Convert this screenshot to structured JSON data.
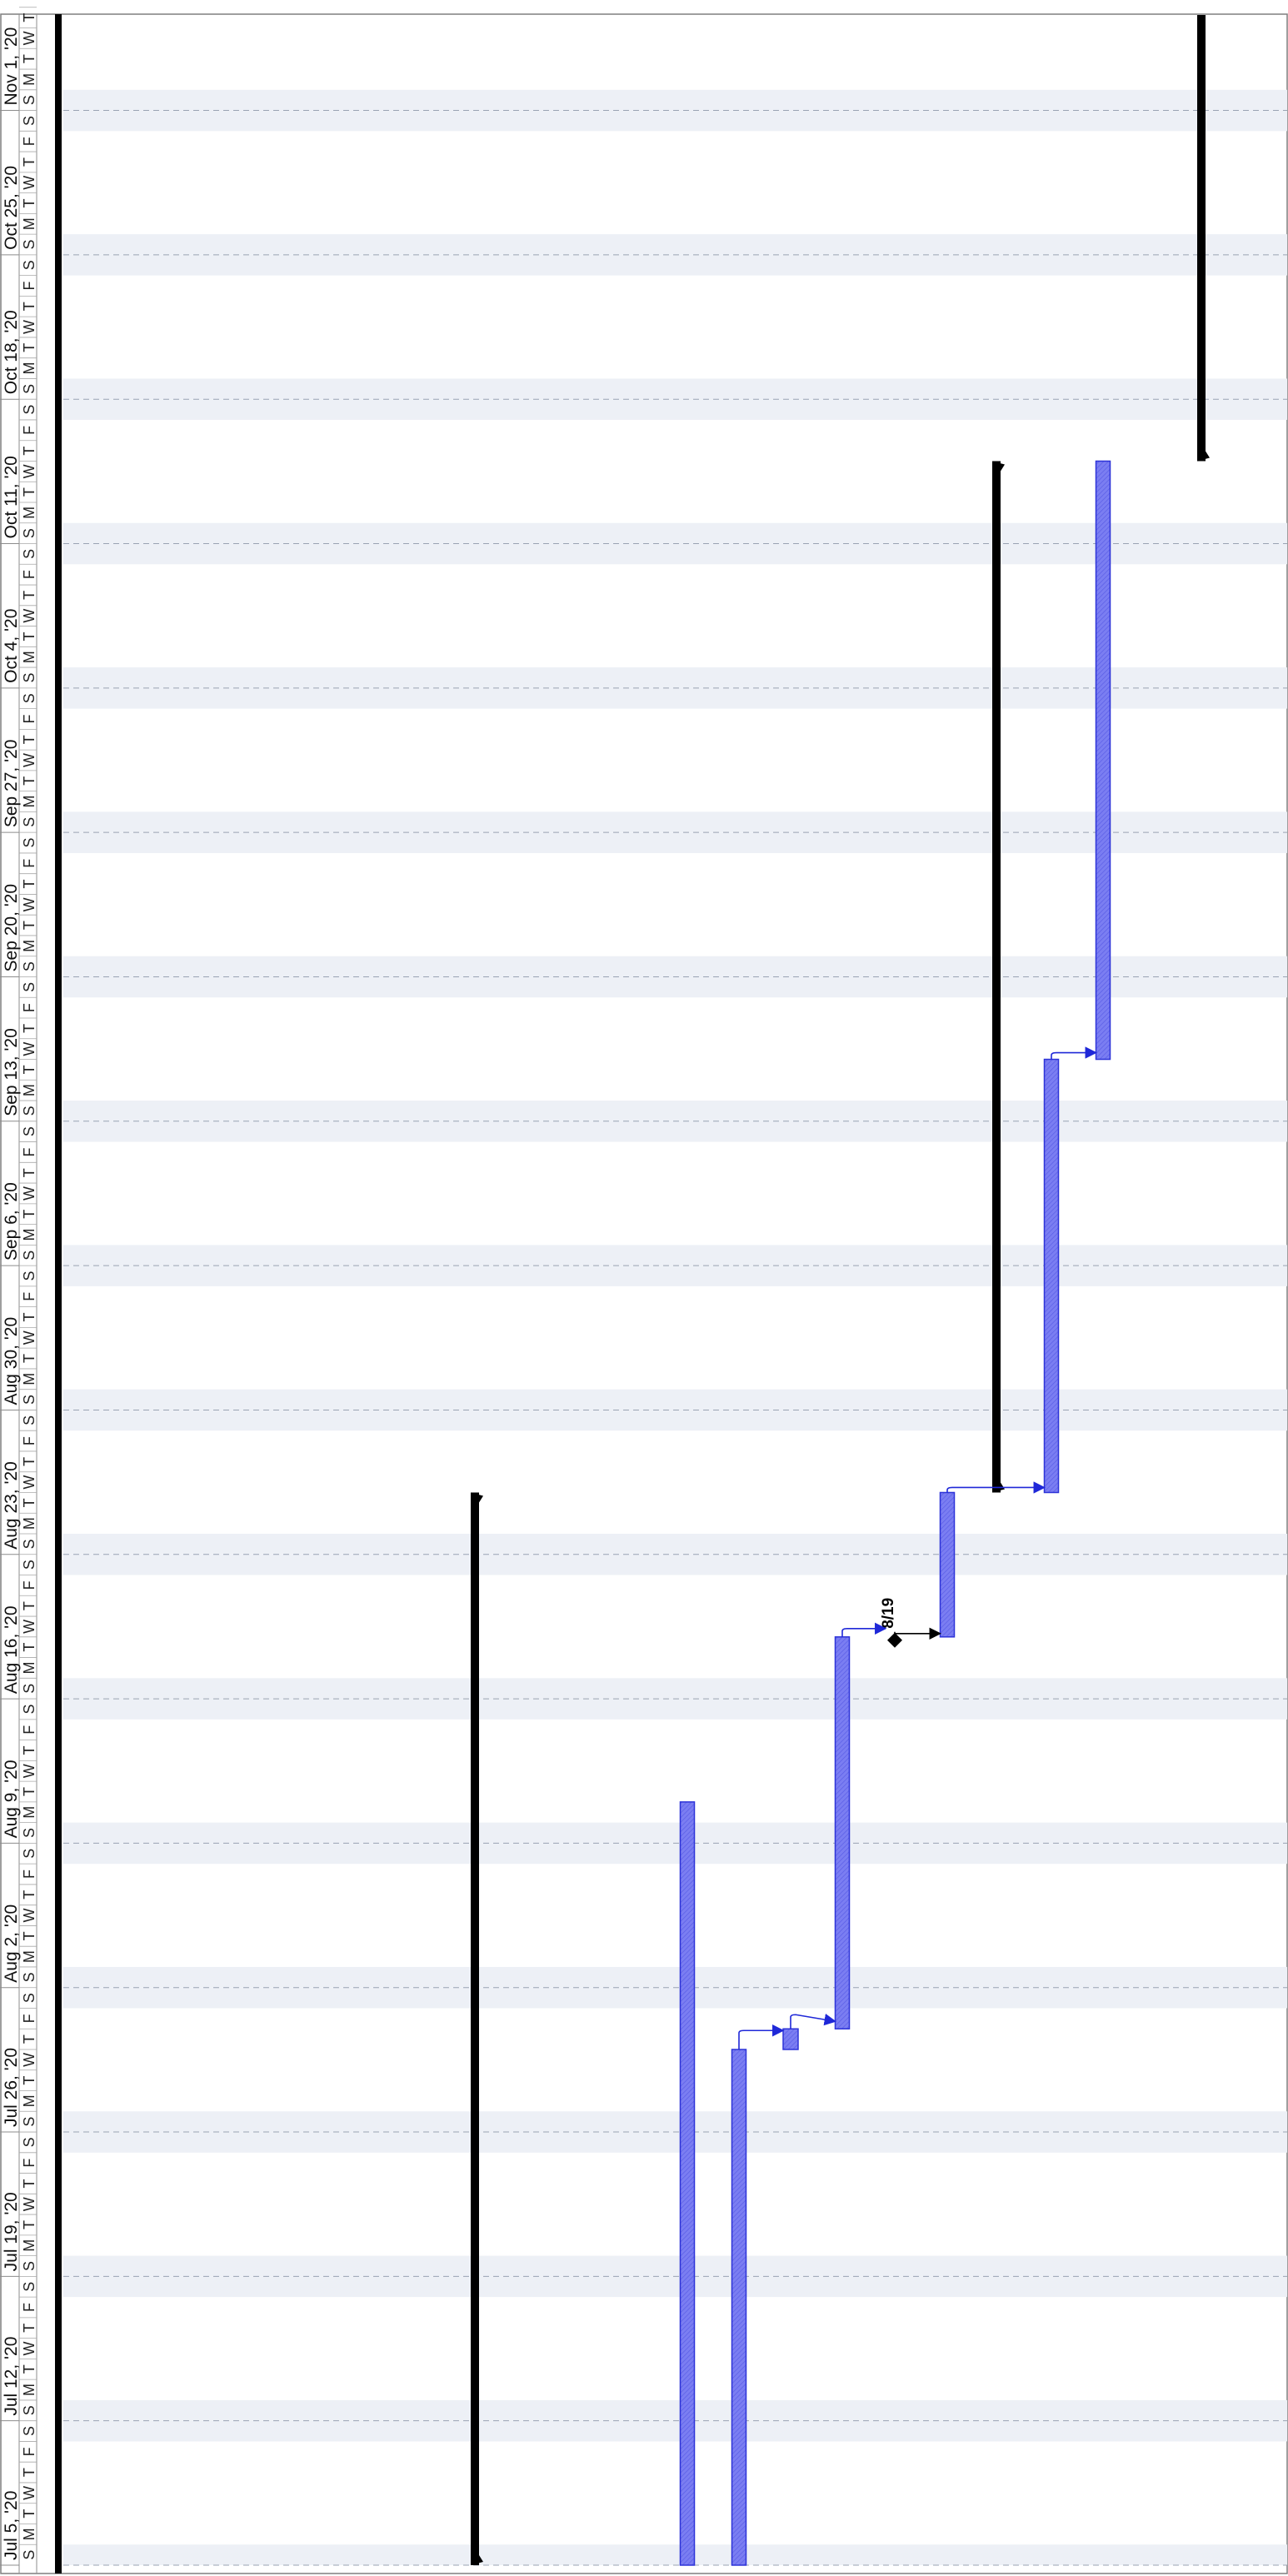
{
  "chart_data": {
    "type": "gantt",
    "orientation": "rotated: time axis runs bottom (earliest) to top (latest)",
    "timescale": {
      "range": [
        "2020-07-05",
        "2020-11-06"
      ],
      "week_labels": [
        "Jul 5, '20",
        "Jul 12, '20",
        "Jul 19, '20",
        "Jul 26, '20",
        "Aug 2, '20",
        "Aug 9, '20",
        "Aug 16, '20",
        "Aug 23, '20",
        "Aug 30, '20",
        "Sep 6, '20",
        "Sep 13, '20",
        "Sep 20, '20",
        "Sep 27, '20",
        "Oct 4, '20",
        "Oct 11, '20",
        "Oct 18, '20",
        "Oct 25, '20",
        "Nov 1, '20"
      ],
      "day_letters": [
        "S",
        "M",
        "T",
        "W",
        "T",
        "F",
        "S"
      ],
      "weekend_shading": true,
      "week_gridlines": "dashed"
    },
    "summary_bars": [
      {
        "start": "2020-07-05",
        "end": "2020-08-26"
      },
      {
        "start": "2020-08-26",
        "end": "2020-10-15"
      },
      {
        "start": "2020-10-15",
        "end": "2020-11-06"
      }
    ],
    "task_bars": [
      {
        "start": "2020-07-05",
        "end": "2020-08-11"
      },
      {
        "start": "2020-07-05",
        "end": "2020-07-30"
      },
      {
        "start": "2020-07-30",
        "end": "2020-07-31"
      },
      {
        "start": "2020-07-31",
        "end": "2020-08-19"
      },
      {
        "start": "2020-08-19",
        "end": "2020-08-26"
      },
      {
        "start": "2020-08-26",
        "end": "2020-09-16"
      },
      {
        "start": "2020-09-16",
        "end": "2020-10-15"
      }
    ],
    "milestones": [
      {
        "date": "2020-08-19",
        "label": "8/19"
      }
    ],
    "dependencies": [
      {
        "from": "task_bars.1",
        "to": "task_bars.2"
      },
      {
        "from": "task_bars.2",
        "to": "task_bars.3"
      },
      {
        "from": "task_bars.3",
        "to": "milestones.0"
      },
      {
        "from": "milestones.0",
        "to": "task_bars.4"
      },
      {
        "from": "task_bars.4",
        "to": "summary_bars.1"
      },
      {
        "from": "task_bars.4",
        "to": "task_bars.5"
      },
      {
        "from": "task_bars.5",
        "to": "task_bars.6"
      }
    ],
    "colors": {
      "task_fill": "#7b7ef2",
      "task_stroke": "#2d33d8",
      "dependency": "#1f28d8",
      "summary": "#000000",
      "weekend": "#edf0f6",
      "gridline": "#9aa3b3"
    }
  }
}
